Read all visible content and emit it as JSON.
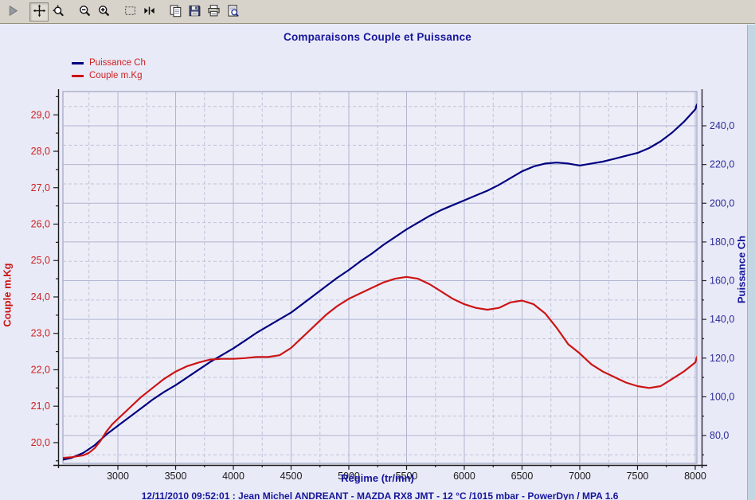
{
  "window": {
    "background": "#e9eaf7",
    "toolbar_background": "#d7d3ca",
    "edge_strip_color": "#c3d6e3"
  },
  "toolbar": {
    "buttons": [
      {
        "name": "run",
        "icon": "play-icon",
        "disabled": true,
        "selected": false,
        "gap": false
      },
      {
        "name": "pan",
        "icon": "pan-icon",
        "disabled": false,
        "selected": true,
        "gap": true
      },
      {
        "name": "zoom-window",
        "icon": "zoom-window-icon",
        "disabled": false,
        "selected": false,
        "gap": false
      },
      {
        "name": "zoom-out",
        "icon": "zoom-out-icon",
        "disabled": false,
        "selected": false,
        "gap": true
      },
      {
        "name": "zoom-in",
        "icon": "zoom-in-icon",
        "disabled": false,
        "selected": false,
        "gap": false
      },
      {
        "name": "select-region",
        "icon": "selection-rect-icon",
        "disabled": false,
        "selected": false,
        "gap": true
      },
      {
        "name": "collapse-horizontal",
        "icon": "collapse-horizontal-icon",
        "disabled": false,
        "selected": false,
        "gap": false
      },
      {
        "name": "copy",
        "icon": "copy-icon",
        "disabled": false,
        "selected": false,
        "gap": true
      },
      {
        "name": "save",
        "icon": "save-icon",
        "disabled": false,
        "selected": false,
        "gap": false
      },
      {
        "name": "print",
        "icon": "print-icon",
        "disabled": false,
        "selected": false,
        "gap": false
      },
      {
        "name": "print-preview",
        "icon": "print-preview-icon",
        "disabled": false,
        "selected": false,
        "gap": false
      }
    ]
  },
  "chart": {
    "title": "Comparaisons Couple et Puissance",
    "title_color": "#16169c",
    "legend": [
      {
        "label": "Puissance Ch",
        "line_color": "#000080",
        "text_color": "#cc2222"
      },
      {
        "label": "Couple m.Kg",
        "line_color": "#cc1414",
        "text_color": "#cc2222"
      }
    ],
    "footer": "12/11/2010 09:52:01 : Jean Michel ANDREANT - MAZDA RX8 JMT - 12 °C /1015 mbar - PowerDyn / MPA 1.6"
  },
  "chart_data": {
    "type": "line",
    "title": "Comparaisons Couple et Puissance",
    "grid": true,
    "legend_position": "top-left",
    "plot_background": "#ededf8",
    "grid_major_color": "#b0b4d0",
    "grid_minor_color": "#bfc3d9",
    "x_axis": {
      "label": "Régime (tr/mn)",
      "min": 2524,
      "max": 8014,
      "major": 500,
      "minor": 250,
      "tick_color": "#1a1a1a",
      "ticks": [
        {
          "v": 3000,
          "label": "3000"
        },
        {
          "v": 3500,
          "label": "3500"
        },
        {
          "v": 4000,
          "label": "4000"
        },
        {
          "v": 4500,
          "label": "4500"
        },
        {
          "v": 5000,
          "label": "5000"
        },
        {
          "v": 5500,
          "label": "5500"
        },
        {
          "v": 6000,
          "label": "6000"
        },
        {
          "v": 6500,
          "label": "6500"
        },
        {
          "v": 7000,
          "label": "7000"
        },
        {
          "v": 7500,
          "label": "7500"
        },
        {
          "v": 8000,
          "label": "8000"
        }
      ]
    },
    "y_left": {
      "label": "Couple m.Kg",
      "color": "#cc1414",
      "tick_color": "#cc2222",
      "min": 19.43,
      "max": 29.64,
      "major": 1.0,
      "minor": 0.5,
      "ticks": [
        {
          "v": 20,
          "label": "20,0"
        },
        {
          "v": 21,
          "label": "21,0"
        },
        {
          "v": 22,
          "label": "22,0"
        },
        {
          "v": 23,
          "label": "23,0"
        },
        {
          "v": 24,
          "label": "24,0"
        },
        {
          "v": 25,
          "label": "25,0"
        },
        {
          "v": 26,
          "label": "26,0"
        },
        {
          "v": 27,
          "label": "27,0"
        },
        {
          "v": 28,
          "label": "28,0"
        },
        {
          "v": 29,
          "label": "29,0"
        }
      ]
    },
    "y_right": {
      "label": "Puissance Ch",
      "color": "#000080",
      "tick_color": "#2b2b99",
      "min": 65.6,
      "max": 257.7,
      "major": 20,
      "minor": 10,
      "ticks": [
        {
          "v": 80,
          "label": "80,0"
        },
        {
          "v": 100,
          "label": "100,0"
        },
        {
          "v": 120,
          "label": "120,0"
        },
        {
          "v": 140,
          "label": "140,0"
        },
        {
          "v": 160,
          "label": "160,0"
        },
        {
          "v": 180,
          "label": "180,0"
        },
        {
          "v": 200,
          "label": "200,0"
        },
        {
          "v": 220,
          "label": "220,0"
        },
        {
          "v": 240,
          "label": "240,0"
        }
      ]
    },
    "series": [
      {
        "name": "Puissance Ch",
        "axis": "right",
        "color": "#000080",
        "points": [
          [
            2524,
            67.5
          ],
          [
            2600,
            68.5
          ],
          [
            2700,
            71
          ],
          [
            2800,
            75
          ],
          [
            2900,
            80.5
          ],
          [
            3000,
            85
          ],
          [
            3100,
            89.5
          ],
          [
            3200,
            94
          ],
          [
            3300,
            98.5
          ],
          [
            3400,
            102.5
          ],
          [
            3500,
            106
          ],
          [
            3600,
            110
          ],
          [
            3700,
            114
          ],
          [
            3800,
            118
          ],
          [
            3900,
            121.5
          ],
          [
            4000,
            125
          ],
          [
            4100,
            129
          ],
          [
            4200,
            133
          ],
          [
            4300,
            136.5
          ],
          [
            4400,
            140
          ],
          [
            4500,
            143.5
          ],
          [
            4600,
            148
          ],
          [
            4700,
            152.5
          ],
          [
            4800,
            157
          ],
          [
            4900,
            161.5
          ],
          [
            5000,
            165.5
          ],
          [
            5100,
            170
          ],
          [
            5200,
            174
          ],
          [
            5300,
            178.5
          ],
          [
            5400,
            182.5
          ],
          [
            5500,
            186.5
          ],
          [
            5600,
            190
          ],
          [
            5700,
            193.5
          ],
          [
            5800,
            196.5
          ],
          [
            5900,
            199
          ],
          [
            6000,
            201.5
          ],
          [
            6100,
            204
          ],
          [
            6200,
            206.5
          ],
          [
            6300,
            209.5
          ],
          [
            6400,
            213
          ],
          [
            6500,
            216.5
          ],
          [
            6600,
            219
          ],
          [
            6700,
            220.5
          ],
          [
            6800,
            221
          ],
          [
            6900,
            220.5
          ],
          [
            7000,
            219.5
          ],
          [
            7100,
            220.5
          ],
          [
            7200,
            221.5
          ],
          [
            7300,
            223
          ],
          [
            7400,
            224.5
          ],
          [
            7500,
            226
          ],
          [
            7600,
            228.5
          ],
          [
            7700,
            232
          ],
          [
            7800,
            236.5
          ],
          [
            7900,
            242
          ],
          [
            8000,
            248.5
          ],
          [
            8014,
            251
          ]
        ]
      },
      {
        "name": "Couple m.Kg",
        "axis": "left",
        "color": "#cc1414",
        "points": [
          [
            2524,
            19.58
          ],
          [
            2600,
            19.6
          ],
          [
            2700,
            19.65
          ],
          [
            2750,
            19.72
          ],
          [
            2800,
            19.85
          ],
          [
            2850,
            20.05
          ],
          [
            2900,
            20.3
          ],
          [
            2950,
            20.5
          ],
          [
            3000,
            20.65
          ],
          [
            3100,
            20.95
          ],
          [
            3200,
            21.25
          ],
          [
            3300,
            21.5
          ],
          [
            3400,
            21.75
          ],
          [
            3500,
            21.95
          ],
          [
            3600,
            22.1
          ],
          [
            3700,
            22.2
          ],
          [
            3800,
            22.28
          ],
          [
            3900,
            22.3
          ],
          [
            4000,
            22.3
          ],
          [
            4100,
            22.32
          ],
          [
            4200,
            22.35
          ],
          [
            4300,
            22.35
          ],
          [
            4400,
            22.4
          ],
          [
            4500,
            22.6
          ],
          [
            4600,
            22.9
          ],
          [
            4700,
            23.2
          ],
          [
            4800,
            23.5
          ],
          [
            4900,
            23.75
          ],
          [
            5000,
            23.95
          ],
          [
            5100,
            24.1
          ],
          [
            5200,
            24.25
          ],
          [
            5300,
            24.4
          ],
          [
            5400,
            24.5
          ],
          [
            5500,
            24.55
          ],
          [
            5600,
            24.5
          ],
          [
            5700,
            24.35
          ],
          [
            5800,
            24.15
          ],
          [
            5900,
            23.95
          ],
          [
            6000,
            23.8
          ],
          [
            6100,
            23.7
          ],
          [
            6200,
            23.65
          ],
          [
            6300,
            23.7
          ],
          [
            6400,
            23.85
          ],
          [
            6500,
            23.9
          ],
          [
            6600,
            23.8
          ],
          [
            6700,
            23.55
          ],
          [
            6800,
            23.15
          ],
          [
            6900,
            22.7
          ],
          [
            7000,
            22.45
          ],
          [
            7100,
            22.15
          ],
          [
            7200,
            21.95
          ],
          [
            7300,
            21.8
          ],
          [
            7400,
            21.65
          ],
          [
            7500,
            21.55
          ],
          [
            7600,
            21.5
          ],
          [
            7700,
            21.55
          ],
          [
            7800,
            21.75
          ],
          [
            7900,
            21.95
          ],
          [
            8000,
            22.2
          ],
          [
            8014,
            22.35
          ]
        ]
      }
    ]
  }
}
